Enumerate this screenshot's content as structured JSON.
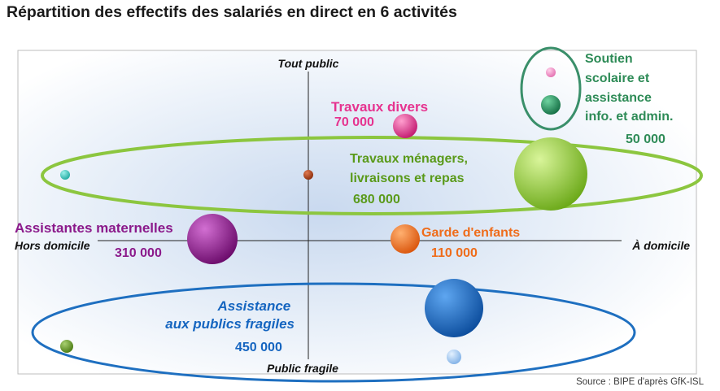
{
  "title": "Répartition des effectifs des salariés en direct en 6 activités",
  "source": "Source : BIPE d'après GfK-ISL",
  "colors": {
    "pink": "#e6338f",
    "green_dark": "#2e8b57",
    "green_light": "#8cc63f",
    "purple": "#8b1a8b",
    "orange": "#ef6c1a",
    "blue": "#1565c0",
    "green_ellipse": "#8cc63f",
    "blue_ellipse": "#1e6fc0",
    "teal_ellipse": "#3a8f6a"
  },
  "chart_data": {
    "type": "bubble",
    "axes": {
      "top": "Tout public",
      "bottom": "Public fragile",
      "left": "Hors domicile",
      "right": "À domicile"
    },
    "series": [
      {
        "name": "Travaux divers",
        "value": "70 000",
        "color": "#e6338f"
      },
      {
        "name": "Soutien scolaire et assistance info. et admin.",
        "value": "50 000",
        "color": "#2e8b57"
      },
      {
        "name": "Travaux ménagers, livraisons et repas",
        "value": "680 000",
        "color": "#8cc63f"
      },
      {
        "name": "Assistantes maternelles",
        "value": "310 000",
        "color": "#8b1a8b"
      },
      {
        "name": "Garde d'enfants",
        "value": "110 000",
        "color": "#ef6c1a"
      },
      {
        "name": "Assistance aux publics fragiles",
        "value": "450 000",
        "color": "#1565c0"
      }
    ]
  }
}
